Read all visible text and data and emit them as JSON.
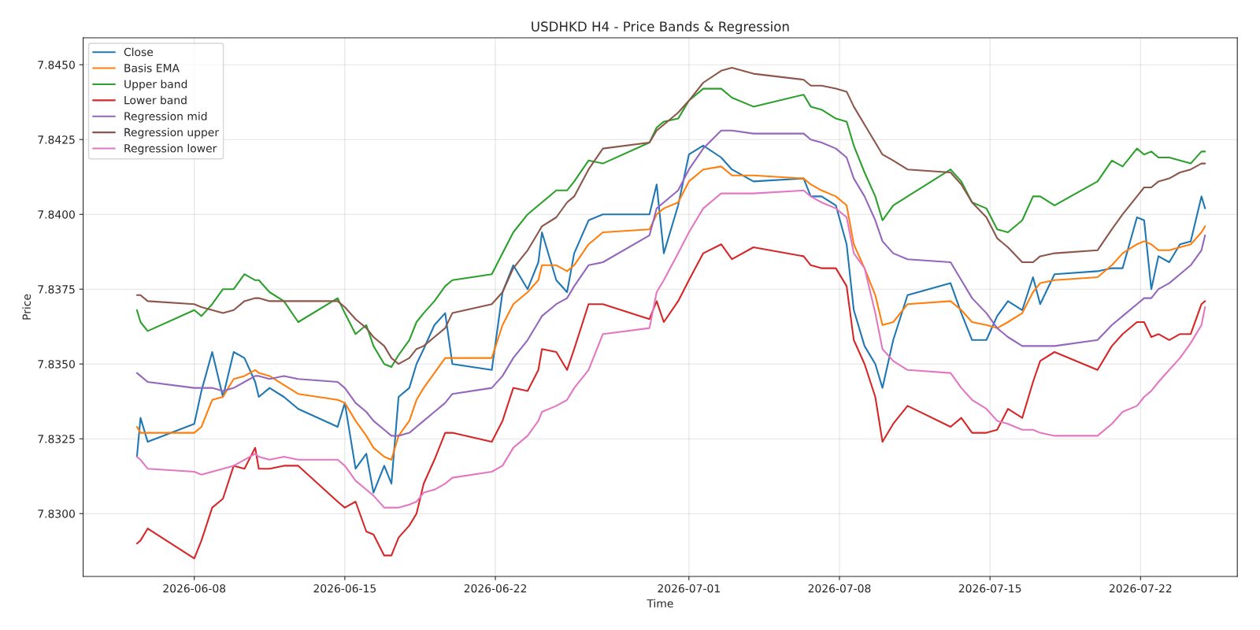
{
  "chart_data": {
    "type": "line",
    "title": "USDHKD H4 - Price Bands & Regression",
    "xlabel": "Time",
    "ylabel": "Price",
    "x": [
      "2026-06-05T08:00",
      "2026-06-05T12:00",
      "2026-06-05T20:00",
      "2026-06-08T00:00",
      "2026-06-08T08:00",
      "2026-06-08T20:00",
      "2026-06-09T08:00",
      "2026-06-09T20:00",
      "2026-06-10T08:00",
      "2026-06-10T20:00",
      "2026-06-11T00:00",
      "2026-06-11T12:00",
      "2026-06-12T04:00",
      "2026-06-12T20:00",
      "2026-06-14T16:00",
      "2026-06-15T00:00",
      "2026-06-15T12:00",
      "2026-06-16T00:00",
      "2026-06-16T08:00",
      "2026-06-16T20:00",
      "2026-06-17T04:00",
      "2026-06-17T12:00",
      "2026-06-18T00:00",
      "2026-06-18T08:00",
      "2026-06-18T16:00",
      "2026-06-19T04:00",
      "2026-06-19T16:00",
      "2026-06-20T00:00",
      "2026-06-21T20:00",
      "2026-06-22T08:00",
      "2026-06-22T20:00",
      "2026-06-23T12:00",
      "2026-06-24T00:00",
      "2026-06-24T04:00",
      "2026-06-24T20:00",
      "2026-06-25T08:00",
      "2026-06-25T16:00",
      "2026-06-26T08:00",
      "2026-06-27T00:00",
      "2026-06-29T04:00",
      "2026-06-29T12:00",
      "2026-06-29T20:00",
      "2026-06-30T12:00",
      "2026-07-01T00:00",
      "2026-07-01T16:00",
      "2026-07-02T12:00",
      "2026-07-03T00:00",
      "2026-07-04T00:00",
      "2026-07-06T08:00",
      "2026-07-06T16:00",
      "2026-07-07T04:00",
      "2026-07-07T20:00",
      "2026-07-08T08:00",
      "2026-07-08T16:00",
      "2026-07-09T04:00",
      "2026-07-09T16:00",
      "2026-07-10T00:00",
      "2026-07-10T12:00",
      "2026-07-11T04:00",
      "2026-07-13T04:00",
      "2026-07-13T16:00",
      "2026-07-14T04:00",
      "2026-07-14T20:00",
      "2026-07-15T08:00",
      "2026-07-15T20:00",
      "2026-07-16T12:00",
      "2026-07-17T00:00",
      "2026-07-17T08:00",
      "2026-07-18T00:00",
      "2026-07-20T00:00",
      "2026-07-20T16:00",
      "2026-07-21T04:00",
      "2026-07-21T20:00",
      "2026-07-22T04:00",
      "2026-07-22T12:00",
      "2026-07-22T20:00",
      "2026-07-23T08:00",
      "2026-07-23T20:00",
      "2026-07-24T08:00",
      "2026-07-24T20:00",
      "2026-07-25T00:00"
    ],
    "series": [
      {
        "name": "Close",
        "color": "#1f77b4",
        "values": [
          7.8319,
          7.8332,
          7.8324,
          7.833,
          7.8341,
          7.8354,
          7.8339,
          7.8354,
          7.8352,
          7.8344,
          7.8339,
          7.8342,
          7.8339,
          7.8335,
          7.8329,
          7.8337,
          7.8315,
          7.832,
          7.8307,
          7.8316,
          7.831,
          7.8339,
          7.8342,
          7.835,
          7.8355,
          7.8363,
          7.8367,
          7.835,
          7.8348,
          7.8374,
          7.8383,
          7.8375,
          7.8384,
          7.8394,
          7.8378,
          7.8374,
          7.8387,
          7.8398,
          7.84,
          7.84,
          7.841,
          7.8387,
          7.8403,
          7.842,
          7.8423,
          7.8419,
          7.8415,
          7.8411,
          7.8412,
          7.8406,
          7.8406,
          7.8403,
          7.839,
          7.8368,
          7.8356,
          7.835,
          7.8342,
          7.8358,
          7.8373,
          7.8377,
          7.8367,
          7.8358,
          7.8358,
          7.8366,
          7.8371,
          7.8368,
          7.8379,
          7.837,
          7.838,
          7.8381,
          7.8382,
          7.8382,
          7.8399,
          7.8398,
          7.8375,
          7.8386,
          7.8384,
          7.839,
          7.8391,
          7.8406,
          7.8402
        ]
      },
      {
        "name": "Basis EMA",
        "color": "#ff7f0e",
        "values": [
          7.8329,
          7.8327,
          7.8327,
          7.8327,
          7.8329,
          7.8338,
          7.8339,
          7.8345,
          7.8346,
          7.8348,
          7.8347,
          7.8346,
          7.8343,
          7.834,
          7.8338,
          7.8337,
          7.8331,
          7.8326,
          7.8322,
          7.8319,
          7.8318,
          7.8326,
          7.8331,
          7.8338,
          7.8342,
          7.8347,
          7.8352,
          7.8352,
          7.8352,
          7.8363,
          7.837,
          7.8374,
          7.8378,
          7.8383,
          7.8383,
          7.8381,
          7.8383,
          7.839,
          7.8394,
          7.8395,
          7.84,
          7.8402,
          7.8404,
          7.8411,
          7.8415,
          7.8416,
          7.8413,
          7.8413,
          7.8412,
          7.841,
          7.8408,
          7.8406,
          7.8403,
          7.839,
          7.8382,
          7.8373,
          7.8363,
          7.8364,
          7.837,
          7.8371,
          7.8368,
          7.8364,
          7.8363,
          7.8362,
          7.8364,
          7.8367,
          7.8374,
          7.8377,
          7.8378,
          7.8379,
          7.8383,
          7.8387,
          7.839,
          7.8391,
          7.839,
          7.8388,
          7.8388,
          7.8389,
          7.839,
          7.8394,
          7.8396
        ]
      },
      {
        "name": "Upper band",
        "color": "#2ca02c",
        "values": [
          7.8368,
          7.8364,
          7.8361,
          7.8368,
          7.8366,
          7.837,
          7.8375,
          7.8375,
          7.838,
          7.8378,
          7.8378,
          7.8374,
          7.8371,
          7.8364,
          7.8372,
          7.8367,
          7.836,
          7.8363,
          7.8356,
          7.835,
          7.8349,
          7.8353,
          7.8358,
          7.8364,
          7.8367,
          7.8371,
          7.8376,
          7.8378,
          7.838,
          7.8387,
          7.8394,
          7.84,
          7.8403,
          7.8404,
          7.8408,
          7.8408,
          7.8411,
          7.8418,
          7.8417,
          7.8424,
          7.8429,
          7.8431,
          7.8432,
          7.8438,
          7.8442,
          7.8442,
          7.8439,
          7.8436,
          7.844,
          7.8436,
          7.8435,
          7.8432,
          7.8431,
          7.8423,
          7.8414,
          7.8406,
          7.8398,
          7.8403,
          7.8406,
          7.8415,
          7.8411,
          7.8404,
          7.8402,
          7.8395,
          7.8394,
          7.8398,
          7.8406,
          7.8406,
          7.8403,
          7.8411,
          7.8418,
          7.8416,
          7.8422,
          7.842,
          7.8421,
          7.8419,
          7.8419,
          7.8418,
          7.8417,
          7.8421,
          7.8421
        ]
      },
      {
        "name": "Lower band",
        "color": "#d62728",
        "values": [
          7.829,
          7.8291,
          7.8295,
          7.8285,
          7.8291,
          7.8302,
          7.8305,
          7.8316,
          7.8315,
          7.8322,
          7.8315,
          7.8315,
          7.8316,
          7.8316,
          7.8304,
          7.8302,
          7.8304,
          7.8294,
          7.8293,
          7.8286,
          7.8286,
          7.8292,
          7.8296,
          7.83,
          7.831,
          7.8318,
          7.8327,
          7.8327,
          7.8324,
          7.8331,
          7.8342,
          7.8341,
          7.8348,
          7.8355,
          7.8354,
          7.8348,
          7.8355,
          7.837,
          7.837,
          7.8365,
          7.8371,
          7.8364,
          7.8371,
          7.8378,
          7.8387,
          7.839,
          7.8385,
          7.8389,
          7.8386,
          7.8383,
          7.8382,
          7.8382,
          7.8376,
          7.8358,
          7.835,
          7.8339,
          7.8324,
          7.833,
          7.8336,
          7.8329,
          7.8332,
          7.8327,
          7.8327,
          7.8328,
          7.8335,
          7.8332,
          7.8344,
          7.8351,
          7.8354,
          7.8348,
          7.8356,
          7.836,
          7.8364,
          7.8364,
          7.8359,
          7.836,
          7.8358,
          7.836,
          7.836,
          7.837,
          7.8371
        ]
      },
      {
        "name": "Regression mid",
        "color": "#9467bd",
        "values": [
          7.8347,
          7.8346,
          7.8344,
          7.8342,
          7.8342,
          7.8342,
          7.8341,
          7.8342,
          7.8344,
          7.8346,
          7.8346,
          7.8345,
          7.8346,
          7.8345,
          7.8344,
          7.8342,
          7.8337,
          7.8334,
          7.8331,
          7.8328,
          7.8326,
          7.8326,
          7.8327,
          7.8329,
          7.8331,
          7.8334,
          7.8337,
          7.834,
          7.8342,
          7.8346,
          7.8352,
          7.8358,
          7.8364,
          7.8366,
          7.837,
          7.8372,
          7.8376,
          7.8383,
          7.8384,
          7.8393,
          7.8402,
          7.8404,
          7.8408,
          7.8415,
          7.8422,
          7.8428,
          7.8428,
          7.8427,
          7.8427,
          7.8425,
          7.8424,
          7.8422,
          7.8419,
          7.8412,
          7.8406,
          7.8398,
          7.8391,
          7.8387,
          7.8385,
          7.8384,
          7.8378,
          7.8372,
          7.8367,
          7.8362,
          7.8359,
          7.8356,
          7.8356,
          7.8356,
          7.8356,
          7.8358,
          7.8363,
          7.8366,
          7.837,
          7.8372,
          7.8372,
          7.8375,
          7.8377,
          7.838,
          7.8383,
          7.8388,
          7.8393
        ]
      },
      {
        "name": "Regression upper",
        "color": "#8c564b",
        "values": [
          7.8373,
          7.8373,
          7.8371,
          7.837,
          7.8369,
          7.8368,
          7.8367,
          7.8368,
          7.8371,
          7.8372,
          7.8372,
          7.8371,
          7.8371,
          7.8371,
          7.8371,
          7.8369,
          7.8365,
          7.8362,
          7.8359,
          7.8356,
          7.8352,
          7.835,
          7.8352,
          7.8355,
          7.8356,
          7.8359,
          7.8362,
          7.8367,
          7.837,
          7.8374,
          7.8382,
          7.8388,
          7.8394,
          7.8396,
          7.8399,
          7.8404,
          7.8406,
          7.8415,
          7.8422,
          7.8424,
          7.8428,
          7.843,
          7.8434,
          7.8438,
          7.8444,
          7.8448,
          7.8449,
          7.8447,
          7.8445,
          7.8443,
          7.8443,
          7.8442,
          7.8441,
          7.8436,
          7.843,
          7.8424,
          7.842,
          7.8418,
          7.8415,
          7.8414,
          7.841,
          7.8404,
          7.8399,
          7.8392,
          7.8389,
          7.8384,
          7.8384,
          7.8386,
          7.8387,
          7.8388,
          7.8395,
          7.84,
          7.8406,
          7.8409,
          7.8409,
          7.8411,
          7.8412,
          7.8414,
          7.8415,
          7.8417,
          7.8417
        ]
      },
      {
        "name": "Regression lower",
        "color": "#e377c2",
        "values": [
          7.8319,
          7.8318,
          7.8315,
          7.8314,
          7.8313,
          7.8314,
          7.8315,
          7.8316,
          7.8318,
          7.832,
          7.8319,
          7.8318,
          7.8319,
          7.8318,
          7.8318,
          7.8316,
          7.8311,
          7.8308,
          7.8306,
          7.8302,
          7.8302,
          7.8302,
          7.8303,
          7.8304,
          7.8307,
          7.8308,
          7.831,
          7.8312,
          7.8314,
          7.8316,
          7.8322,
          7.8326,
          7.8331,
          7.8334,
          7.8336,
          7.8338,
          7.8342,
          7.8348,
          7.836,
          7.8362,
          7.8374,
          7.8378,
          7.8387,
          7.8394,
          7.8402,
          7.8407,
          7.8407,
          7.8407,
          7.8408,
          7.8406,
          7.8404,
          7.8402,
          7.8399,
          7.8387,
          7.8382,
          7.8367,
          7.8355,
          7.8351,
          7.8348,
          7.8347,
          7.8342,
          7.8338,
          7.8335,
          7.8331,
          7.833,
          7.8328,
          7.8328,
          7.8327,
          7.8326,
          7.8326,
          7.833,
          7.8334,
          7.8336,
          7.8339,
          7.8341,
          7.8344,
          7.8348,
          7.8352,
          7.8357,
          7.8363,
          7.8369
        ]
      }
    ],
    "xlim": [
      "2026-06-02T20:00",
      "2026-07-26T12:00"
    ],
    "xticks": [
      "2026-06-08",
      "2026-06-15",
      "2026-06-22",
      "2026-07-01",
      "2026-07-08",
      "2026-07-15",
      "2026-07-22"
    ],
    "ylim": [
      7.8279,
      7.8459
    ],
    "yticks": [
      {
        "value": 7.83,
        "label": "7.8300"
      },
      {
        "value": 7.8325,
        "label": "7.8325"
      },
      {
        "value": 7.835,
        "label": "7.8350"
      },
      {
        "value": 7.8375,
        "label": "7.8375"
      },
      {
        "value": 7.84,
        "label": "7.8400"
      },
      {
        "value": 7.8425,
        "label": "7.8425"
      },
      {
        "value": 7.845,
        "label": "7.8450"
      }
    ],
    "grid": true,
    "legend": "upper left",
    "marker": "none",
    "line_style": "solid"
  }
}
